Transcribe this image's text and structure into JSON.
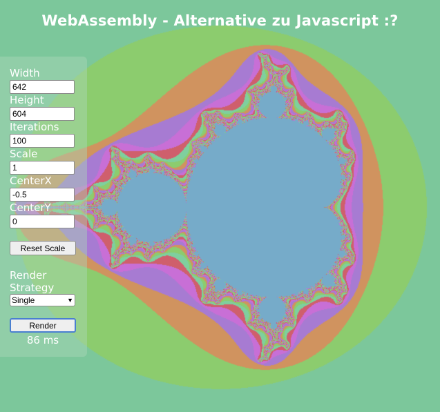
{
  "page": {
    "title": "WebAssembly - Alternative zu Javascript :?"
  },
  "controls": {
    "width": {
      "label": "Width",
      "value": "642"
    },
    "height": {
      "label": "Height",
      "value": "604"
    },
    "iterations": {
      "label": "Iterations",
      "value": "100"
    },
    "scale": {
      "label": "Scale",
      "value": "1"
    },
    "centerx": {
      "label": "CenterX",
      "value": "-0.5"
    },
    "centery": {
      "label": "CenterY",
      "value": "0"
    },
    "reset_label": "Reset Scale",
    "strategy_label": "Render Strategy",
    "strategy_value": "Single",
    "render_label": "Render",
    "timing": "86 ms"
  },
  "fractal": {
    "center_x": -0.5,
    "center_y": 0,
    "scale": 1,
    "iterations": 100,
    "colors": {
      "inside": "#76abc9",
      "outer": "#7cc79b",
      "band_green": "#8ccc6e",
      "band_orange": "#d0935f",
      "band_purple": "#a77bd2",
      "band_magenta": "#c86fd6",
      "band_red": "#cf5f6c",
      "band_mint": "#7fcf9e"
    }
  }
}
